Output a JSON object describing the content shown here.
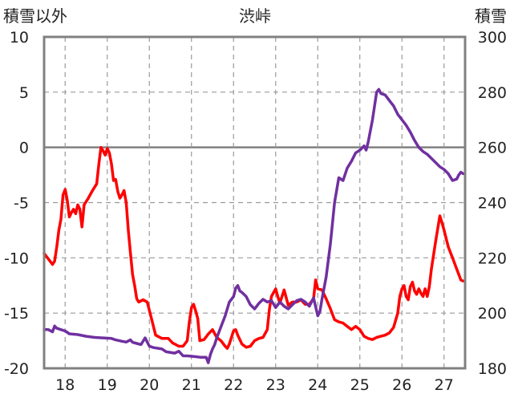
{
  "chart_data": {
    "type": "line",
    "title": "渋峠",
    "y_left_label": "積雪以外",
    "y_right_label": "積雪",
    "y_left_lim": [
      -20,
      10
    ],
    "y_right_lim": [
      180,
      300
    ],
    "y_left_ticks": [
      "10",
      "5",
      "0",
      "-5",
      "-10",
      "-15",
      "-20"
    ],
    "y_right_ticks": [
      "300",
      "280",
      "260",
      "240",
      "220",
      "200",
      "180"
    ],
    "x_ticks": [
      "18",
      "19",
      "20",
      "21",
      "22",
      "23",
      "24",
      "25",
      "26",
      "27"
    ],
    "x_lim": [
      17.5,
      27.5
    ],
    "grid": true,
    "series": [
      {
        "axis": "left",
        "color": "#ff0000",
        "points": [
          [
            17.5,
            -9.6
          ],
          [
            17.6,
            -10.1
          ],
          [
            17.7,
            -10.6
          ],
          [
            17.75,
            -10.3
          ],
          [
            17.8,
            -9.0
          ],
          [
            17.85,
            -7.5
          ],
          [
            17.9,
            -6.5
          ],
          [
            17.95,
            -4.3
          ],
          [
            18.0,
            -3.8
          ],
          [
            18.05,
            -4.8
          ],
          [
            18.1,
            -6.3
          ],
          [
            18.15,
            -5.9
          ],
          [
            18.2,
            -5.6
          ],
          [
            18.25,
            -6.0
          ],
          [
            18.3,
            -5.2
          ],
          [
            18.35,
            -5.6
          ],
          [
            18.4,
            -7.2
          ],
          [
            18.45,
            -5.2
          ],
          [
            18.55,
            -4.6
          ],
          [
            18.65,
            -3.9
          ],
          [
            18.75,
            -3.3
          ],
          [
            18.8,
            -1.5
          ],
          [
            18.85,
            0.0
          ],
          [
            18.9,
            -0.3
          ],
          [
            18.95,
            -0.7
          ],
          [
            19.0,
            -0.1
          ],
          [
            19.05,
            -0.5
          ],
          [
            19.1,
            -1.5
          ],
          [
            19.15,
            -3.0
          ],
          [
            19.2,
            -2.9
          ],
          [
            19.25,
            -4.0
          ],
          [
            19.3,
            -4.6
          ],
          [
            19.35,
            -4.3
          ],
          [
            19.4,
            -3.9
          ],
          [
            19.45,
            -5.0
          ],
          [
            19.5,
            -7.5
          ],
          [
            19.55,
            -9.5
          ],
          [
            19.6,
            -11.5
          ],
          [
            19.65,
            -12.5
          ],
          [
            19.7,
            -13.7
          ],
          [
            19.75,
            -14.0
          ],
          [
            19.85,
            -13.8
          ],
          [
            19.95,
            -14.0
          ],
          [
            20.05,
            -15.5
          ],
          [
            20.15,
            -17.0
          ],
          [
            20.3,
            -17.3
          ],
          [
            20.45,
            -17.3
          ],
          [
            20.55,
            -17.7
          ],
          [
            20.7,
            -18.0
          ],
          [
            20.8,
            -18.0
          ],
          [
            20.9,
            -17.5
          ],
          [
            20.95,
            -15.8
          ],
          [
            21.0,
            -14.5
          ],
          [
            21.05,
            -14.2
          ],
          [
            21.1,
            -14.8
          ],
          [
            21.15,
            -15.5
          ],
          [
            21.2,
            -17.5
          ],
          [
            21.3,
            -17.4
          ],
          [
            21.4,
            -16.9
          ],
          [
            21.5,
            -16.5
          ],
          [
            21.6,
            -17.2
          ],
          [
            21.7,
            -17.5
          ],
          [
            21.8,
            -18.0
          ],
          [
            21.85,
            -18.2
          ],
          [
            21.9,
            -17.8
          ],
          [
            22.0,
            -16.6
          ],
          [
            22.05,
            -16.5
          ],
          [
            22.1,
            -17.0
          ],
          [
            22.2,
            -17.8
          ],
          [
            22.3,
            -18.1
          ],
          [
            22.4,
            -18.0
          ],
          [
            22.5,
            -17.5
          ],
          [
            22.6,
            -17.3
          ],
          [
            22.7,
            -17.2
          ],
          [
            22.8,
            -16.5
          ],
          [
            22.85,
            -14.7
          ],
          [
            22.9,
            -13.5
          ],
          [
            23.0,
            -12.8
          ],
          [
            23.05,
            -13.5
          ],
          [
            23.1,
            -14.1
          ],
          [
            23.2,
            -12.9
          ],
          [
            23.3,
            -14.3
          ],
          [
            23.4,
            -14.0
          ],
          [
            23.5,
            -14.0
          ],
          [
            23.6,
            -13.8
          ],
          [
            23.7,
            -14.2
          ],
          [
            23.8,
            -14.2
          ],
          [
            23.9,
            -13.7
          ],
          [
            23.95,
            -12.0
          ],
          [
            24.0,
            -12.8
          ],
          [
            24.1,
            -12.9
          ],
          [
            24.2,
            -13.7
          ],
          [
            24.3,
            -14.6
          ],
          [
            24.4,
            -15.6
          ],
          [
            24.5,
            -15.8
          ],
          [
            24.6,
            -15.9
          ],
          [
            24.7,
            -16.2
          ],
          [
            24.8,
            -16.5
          ],
          [
            24.9,
            -16.2
          ],
          [
            25.0,
            -16.5
          ],
          [
            25.1,
            -17.1
          ],
          [
            25.2,
            -17.3
          ],
          [
            25.3,
            -17.4
          ],
          [
            25.4,
            -17.2
          ],
          [
            25.5,
            -17.1
          ],
          [
            25.6,
            -17.0
          ],
          [
            25.7,
            -16.8
          ],
          [
            25.8,
            -16.3
          ],
          [
            25.9,
            -15.0
          ],
          [
            25.95,
            -13.5
          ],
          [
            26.0,
            -12.8
          ],
          [
            26.05,
            -12.5
          ],
          [
            26.1,
            -13.5
          ],
          [
            26.15,
            -13.8
          ],
          [
            26.2,
            -12.6
          ],
          [
            26.25,
            -12.2
          ],
          [
            26.3,
            -13.0
          ],
          [
            26.35,
            -13.3
          ],
          [
            26.4,
            -12.8
          ],
          [
            26.45,
            -13.2
          ],
          [
            26.5,
            -13.5
          ],
          [
            26.55,
            -12.8
          ],
          [
            26.6,
            -13.5
          ],
          [
            26.65,
            -12.6
          ],
          [
            26.7,
            -11.0
          ],
          [
            26.8,
            -8.5
          ],
          [
            26.9,
            -6.2
          ],
          [
            26.95,
            -6.8
          ],
          [
            27.0,
            -7.5
          ],
          [
            27.1,
            -9.0
          ],
          [
            27.2,
            -10.0
          ],
          [
            27.3,
            -11.0
          ],
          [
            27.4,
            -12.0
          ],
          [
            27.45,
            -12.1
          ]
        ]
      },
      {
        "axis": "right",
        "color": "#7030a0",
        "points": [
          [
            17.5,
            194.0
          ],
          [
            17.6,
            194.0
          ],
          [
            17.7,
            193.2
          ],
          [
            17.75,
            195.3
          ],
          [
            17.8,
            194.5
          ],
          [
            17.9,
            194.0
          ],
          [
            18.0,
            193.5
          ],
          [
            18.1,
            192.5
          ],
          [
            18.3,
            192.2
          ],
          [
            18.5,
            191.6
          ],
          [
            18.7,
            191.2
          ],
          [
            18.9,
            191.0
          ],
          [
            19.1,
            190.8
          ],
          [
            19.2,
            190.3
          ],
          [
            19.35,
            189.8
          ],
          [
            19.45,
            189.5
          ],
          [
            19.55,
            190.3
          ],
          [
            19.6,
            189.4
          ],
          [
            19.7,
            189.0
          ],
          [
            19.8,
            188.6
          ],
          [
            19.9,
            191.0
          ],
          [
            19.95,
            189.5
          ],
          [
            20.0,
            188.0
          ],
          [
            20.1,
            187.5
          ],
          [
            20.3,
            187.0
          ],
          [
            20.4,
            186.0
          ],
          [
            20.6,
            185.5
          ],
          [
            20.7,
            186.2
          ],
          [
            20.8,
            184.5
          ],
          [
            20.9,
            184.5
          ],
          [
            21.1,
            184.2
          ],
          [
            21.2,
            184.0
          ],
          [
            21.35,
            184.0
          ],
          [
            21.4,
            182.0
          ],
          [
            21.45,
            185.0
          ],
          [
            21.5,
            187.0
          ],
          [
            21.55,
            188.5
          ],
          [
            21.6,
            191.0
          ],
          [
            21.7,
            195.0
          ],
          [
            21.8,
            199.0
          ],
          [
            21.9,
            204.0
          ],
          [
            22.0,
            206.0
          ],
          [
            22.05,
            209.0
          ],
          [
            22.1,
            210.0
          ],
          [
            22.15,
            208.0
          ],
          [
            22.2,
            207.5
          ],
          [
            22.3,
            206.0
          ],
          [
            22.4,
            203.0
          ],
          [
            22.5,
            201.5
          ],
          [
            22.6,
            203.5
          ],
          [
            22.7,
            205.0
          ],
          [
            22.8,
            204.0
          ],
          [
            22.9,
            204.5
          ],
          [
            23.0,
            202.0
          ],
          [
            23.1,
            204.0
          ],
          [
            23.2,
            202.5
          ],
          [
            23.3,
            201.5
          ],
          [
            23.4,
            203.0
          ],
          [
            23.5,
            204.5
          ],
          [
            23.6,
            205.0
          ],
          [
            23.7,
            204.0
          ],
          [
            23.8,
            202.5
          ],
          [
            23.9,
            205.5
          ],
          [
            24.0,
            199.0
          ],
          [
            24.05,
            200.5
          ],
          [
            24.1,
            205.0
          ],
          [
            24.2,
            213.0
          ],
          [
            24.3,
            225.0
          ],
          [
            24.4,
            240.0
          ],
          [
            24.5,
            249.0
          ],
          [
            24.6,
            248.0
          ],
          [
            24.7,
            252.5
          ],
          [
            24.8,
            255.0
          ],
          [
            24.9,
            258.0
          ],
          [
            25.0,
            259.0
          ],
          [
            25.1,
            260.5
          ],
          [
            25.15,
            259.0
          ],
          [
            25.2,
            262.0
          ],
          [
            25.3,
            270.0
          ],
          [
            25.4,
            280.0
          ],
          [
            25.45,
            281.0
          ],
          [
            25.5,
            279.5
          ],
          [
            25.6,
            279.0
          ],
          [
            25.7,
            277.0
          ],
          [
            25.8,
            275.0
          ],
          [
            25.9,
            272.0
          ],
          [
            26.0,
            270.0
          ],
          [
            26.1,
            268.0
          ],
          [
            26.2,
            265.5
          ],
          [
            26.3,
            262.5
          ],
          [
            26.4,
            260.0
          ],
          [
            26.5,
            258.5
          ],
          [
            26.6,
            257.5
          ],
          [
            26.7,
            256.0
          ],
          [
            26.8,
            254.5
          ],
          [
            26.9,
            253.0
          ],
          [
            27.0,
            252.0
          ],
          [
            27.1,
            250.5
          ],
          [
            27.2,
            248.0
          ],
          [
            27.3,
            248.5
          ],
          [
            27.35,
            250.0
          ],
          [
            27.4,
            251.0
          ],
          [
            27.45,
            250.5
          ]
        ]
      }
    ]
  }
}
